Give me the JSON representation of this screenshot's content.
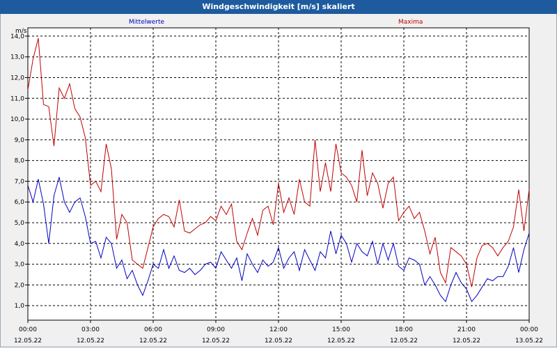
{
  "window": {
    "title": "Windgeschwindigkeit [m/s] skaliert"
  },
  "chart_data": {
    "type": "line",
    "title": "Windgeschwindigkeit [m/s] skaliert",
    "ylabel": "m/s",
    "ylim": [
      0.3,
      14.4
    ],
    "yticks": [
      "14,0",
      "13,0",
      "12,0",
      "11,0",
      "10,0",
      "9,0",
      "8,0",
      "7,0",
      "6,0",
      "5,0",
      "4,0",
      "3,0",
      "2,0",
      "1,0"
    ],
    "xticks": [
      {
        "time": "00:00",
        "date": "12.05.22"
      },
      {
        "time": "03:00",
        "date": "12.05.22"
      },
      {
        "time": "06:00",
        "date": "12.05.22"
      },
      {
        "time": "09:00",
        "date": "12.05.22"
      },
      {
        "time": "12:00",
        "date": "12.05.22"
      },
      {
        "time": "15:00",
        "date": "12.05.22"
      },
      {
        "time": "18:00",
        "date": "12.05.22"
      },
      {
        "time": "21:00",
        "date": "12.05.22"
      },
      {
        "time": "00:00",
        "date": "13.05.22"
      }
    ],
    "xlim_hours": [
      0,
      24
    ],
    "grid": true,
    "series": [
      {
        "name": "Mittelwerte",
        "color": "#0000c0",
        "hours": [
          0,
          0.25,
          0.5,
          0.75,
          1,
          1.25,
          1.5,
          1.75,
          2,
          2.25,
          2.5,
          2.75,
          3,
          3.25,
          3.5,
          3.75,
          4,
          4.25,
          4.5,
          4.75,
          5,
          5.25,
          5.5,
          5.75,
          6,
          6.25,
          6.5,
          6.75,
          7,
          7.25,
          7.5,
          7.75,
          8,
          8.25,
          8.5,
          8.75,
          9,
          9.25,
          9.5,
          9.75,
          10,
          10.25,
          10.5,
          10.75,
          11,
          11.25,
          11.5,
          11.75,
          12,
          12.25,
          12.5,
          12.75,
          13,
          13.25,
          13.5,
          13.75,
          14,
          14.25,
          14.5,
          14.75,
          15,
          15.25,
          15.5,
          15.75,
          16,
          16.25,
          16.5,
          16.75,
          17,
          17.25,
          17.5,
          17.75,
          18,
          18.25,
          18.5,
          18.75,
          19,
          19.25,
          19.5,
          19.75,
          20,
          20.25,
          20.5,
          20.75,
          21,
          21.25,
          21.5,
          21.75,
          22,
          22.25,
          22.5,
          22.75,
          23,
          23.25,
          23.5,
          23.75,
          24
        ],
        "values": [
          6.8,
          6.0,
          7.1,
          5.9,
          4.0,
          6.3,
          7.2,
          6.0,
          5.5,
          6.0,
          6.2,
          5.3,
          4.0,
          4.1,
          3.3,
          4.3,
          4.0,
          2.8,
          3.2,
          2.3,
          2.7,
          2.0,
          1.5,
          2.2,
          3.0,
          2.8,
          3.7,
          2.8,
          3.4,
          2.7,
          2.6,
          2.8,
          2.5,
          2.7,
          3.0,
          3.1,
          2.8,
          3.6,
          3.2,
          2.8,
          3.3,
          2.2,
          3.5,
          3.0,
          2.6,
          3.2,
          2.9,
          3.1,
          3.8,
          2.8,
          3.3,
          3.6,
          2.7,
          3.7,
          3.2,
          2.7,
          3.6,
          3.3,
          4.6,
          3.5,
          4.4,
          4.0,
          3.1,
          4.0,
          3.6,
          3.4,
          4.1,
          3.0,
          4.0,
          3.2,
          4.0,
          2.9,
          2.7,
          3.3,
          3.2,
          3.0,
          2.0,
          2.4,
          2.0,
          1.5,
          1.2,
          2.0,
          2.6,
          2.1,
          1.8,
          1.2,
          1.5,
          1.9,
          2.3,
          2.2,
          2.4,
          2.4,
          2.9,
          3.8,
          2.6,
          3.7,
          4.5
        ],
        "legend_position": "top-left"
      },
      {
        "name": "Maxima",
        "color": "#c00000",
        "hours": [
          0,
          0.25,
          0.5,
          0.75,
          1,
          1.25,
          1.5,
          1.75,
          2,
          2.25,
          2.5,
          2.75,
          3,
          3.25,
          3.5,
          3.75,
          4,
          4.25,
          4.5,
          4.75,
          5,
          5.25,
          5.5,
          5.75,
          6,
          6.25,
          6.5,
          6.75,
          7,
          7.25,
          7.5,
          7.75,
          8,
          8.25,
          8.5,
          8.75,
          9,
          9.25,
          9.5,
          9.75,
          10,
          10.25,
          10.5,
          10.75,
          11,
          11.25,
          11.5,
          11.75,
          12,
          12.25,
          12.5,
          12.75,
          13,
          13.25,
          13.5,
          13.75,
          14,
          14.25,
          14.5,
          14.75,
          15,
          15.25,
          15.5,
          15.75,
          16,
          16.25,
          16.5,
          16.75,
          17,
          17.25,
          17.5,
          17.75,
          18,
          18.25,
          18.5,
          18.75,
          19,
          19.25,
          19.5,
          19.75,
          20,
          20.25,
          20.5,
          20.75,
          21,
          21.25,
          21.5,
          21.75,
          22,
          22.25,
          22.5,
          22.75,
          23,
          23.25,
          23.5,
          23.75,
          24
        ],
        "values": [
          11.4,
          12.9,
          13.9,
          10.7,
          10.6,
          8.7,
          11.5,
          11.0,
          11.7,
          10.5,
          10.1,
          9.1,
          6.8,
          7.0,
          6.5,
          8.8,
          7.6,
          4.2,
          5.4,
          5.0,
          3.2,
          3.0,
          2.8,
          3.8,
          4.8,
          5.2,
          5.4,
          5.3,
          4.8,
          6.1,
          4.6,
          4.5,
          4.7,
          4.9,
          5.0,
          5.3,
          5.1,
          5.8,
          5.4,
          5.9,
          4.1,
          3.7,
          4.5,
          5.2,
          4.4,
          5.6,
          5.8,
          4.9,
          6.9,
          5.5,
          6.2,
          5.4,
          7.1,
          6.0,
          5.8,
          9.0,
          6.5,
          7.9,
          6.5,
          8.8,
          7.4,
          7.2,
          6.8,
          6.0,
          8.5,
          6.3,
          7.4,
          6.9,
          5.7,
          6.9,
          7.2,
          5.1,
          5.5,
          5.8,
          5.2,
          5.5,
          4.6,
          3.5,
          4.3,
          2.6,
          2.1,
          3.8,
          3.6,
          3.4,
          3.0,
          1.9,
          3.3,
          3.9,
          4.0,
          3.8,
          3.4,
          3.8,
          4.1,
          4.8,
          6.6,
          4.6,
          6.6
        ],
        "legend_position": "top-right"
      }
    ]
  }
}
